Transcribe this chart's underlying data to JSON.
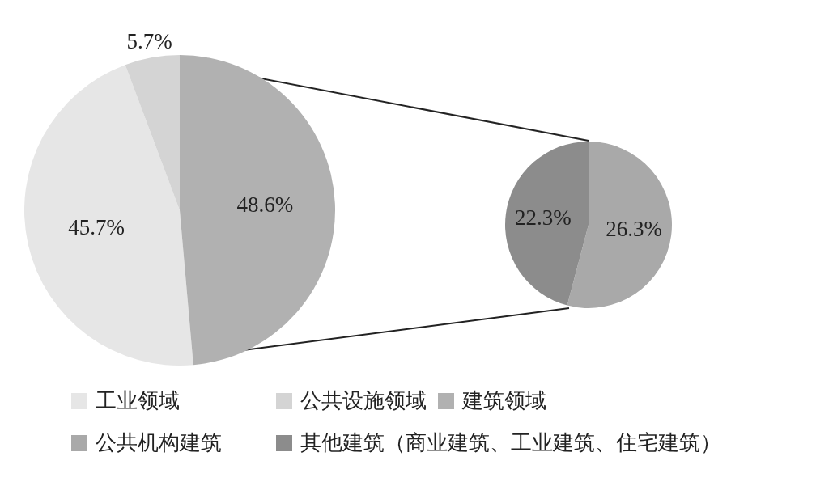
{
  "chart_data": [
    {
      "type": "pie",
      "categories": [
        "工业领域",
        "公共设施领域",
        "建筑领域"
      ],
      "values": [
        45.7,
        5.7,
        48.6
      ],
      "colors": [
        "#e6e6e6",
        "#d4d4d4",
        "#b1b1b1"
      ],
      "value_labels": [
        "45.7%",
        "5.7%",
        "48.6%"
      ],
      "legend": "bottom"
    },
    {
      "type": "pie",
      "categories": [
        "公共机构建筑",
        "其他建筑（商业建筑、工业建筑、住宅建筑）"
      ],
      "values": [
        26.3,
        22.3
      ],
      "colors": [
        "#a9a9a9",
        "#8c8c8c"
      ],
      "value_labels": [
        "26.3%",
        "22.3%"
      ],
      "legend": "bottom"
    }
  ]
}
